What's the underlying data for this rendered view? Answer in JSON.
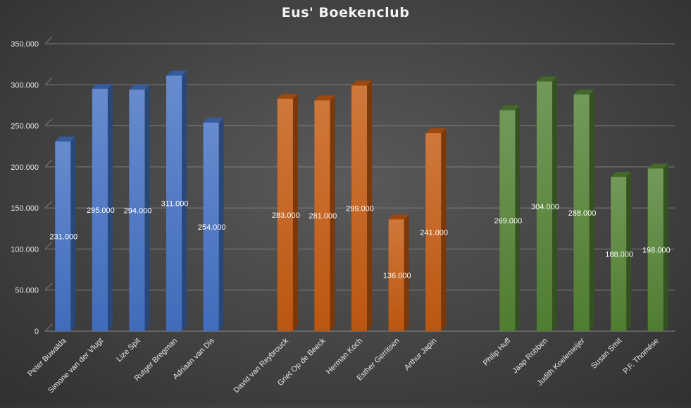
{
  "chart_data": {
    "type": "bar",
    "title": "Eus' Boekenclub",
    "xlabel": "",
    "ylabel": "",
    "ylim": [
      0,
      350000
    ],
    "yticks": [
      0,
      50000,
      100000,
      150000,
      200000,
      250000,
      300000,
      350000
    ],
    "ytick_labels": [
      "0",
      "50.000",
      "100.000",
      "150.000",
      "200.000",
      "250.000",
      "300.000",
      "350.000"
    ],
    "grid": true,
    "legend": "none",
    "style": "3d-column",
    "groups": [
      {
        "color": "#4472C4",
        "categories": [
          "Peter Buwalda",
          "Simone van der Vlugt",
          "Lize Spit",
          "Rutger Bregman",
          "Adriaan van Dis"
        ],
        "values": [
          231000,
          295000,
          294000,
          311000,
          254000
        ],
        "value_labels": [
          "231.000",
          "295.000",
          "294.000",
          "311.000",
          "254.000"
        ]
      },
      {
        "color": "#C55A11",
        "categories": [
          "David van Reybrouck",
          "Griet Op de Beeck",
          "Herman Koch",
          "Esther Gerritsen",
          "Arthur Japin"
        ],
        "values": [
          283000,
          281000,
          299000,
          136000,
          241000
        ],
        "value_labels": [
          "283.000",
          "281.000",
          "299.000",
          "136.000",
          "241.000"
        ]
      },
      {
        "color": "#548235",
        "categories": [
          "Philip Huff",
          "Jaap Robben",
          "Judith Koelemeijer",
          "Susan Smit",
          "P.F. Thomése"
        ],
        "values": [
          269000,
          304000,
          288000,
          188000,
          198000
        ],
        "value_labels": [
          "269.000",
          "304.000",
          "288.000",
          "188.000",
          "198.000"
        ]
      }
    ]
  }
}
